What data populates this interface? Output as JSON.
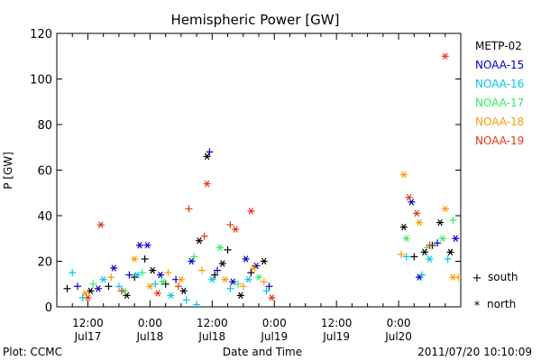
{
  "chart_data": {
    "type": "scatter",
    "title": "Hemispheric Power [GW]",
    "xlabel": "Date and Time",
    "ylabel": "P [GW]",
    "ylim": [
      0,
      120
    ],
    "yticks": [
      0,
      20,
      40,
      60,
      80,
      100,
      120
    ],
    "xlim": [
      "2011-07-17 06:00",
      "2011-07-20 12:00"
    ],
    "xticks": [
      {
        "value": "2011-07-17 12:00",
        "time": "12:00",
        "date": "Jul17"
      },
      {
        "value": "2011-07-18 00:00",
        "time": "0:00",
        "date": "Jul18"
      },
      {
        "value": "2011-07-18 12:00",
        "time": "12:00",
        "date": "Jul18"
      },
      {
        "value": "2011-07-19 00:00",
        "time": "0:00",
        "date": "Jul19"
      },
      {
        "value": "2011-07-19 12:00",
        "time": "12:00",
        "date": "Jul19"
      },
      {
        "value": "2011-07-20 00:00",
        "time": "0:00",
        "date": "Jul20"
      }
    ],
    "markers": {
      "south_symbol": "+",
      "south_label": "south",
      "north_symbol": "*",
      "north_label": "north"
    },
    "series": [
      {
        "name": "METP-02",
        "color": "#000000",
        "points": [
          {
            "x": "2011-07-17 08:00",
            "y": 8,
            "m": "+"
          },
          {
            "x": "2011-07-17 12:30",
            "y": 7,
            "m": "*"
          },
          {
            "x": "2011-07-17 16:00",
            "y": 9,
            "m": "+"
          },
          {
            "x": "2011-07-17 19:30",
            "y": 5,
            "m": "*"
          },
          {
            "x": "2011-07-17 21:00",
            "y": 13,
            "m": "+"
          },
          {
            "x": "2011-07-17 23:00",
            "y": 21,
            "m": "+"
          },
          {
            "x": "2011-07-18 00:30",
            "y": 16,
            "m": "*"
          },
          {
            "x": "2011-07-18 03:00",
            "y": 10,
            "m": "+"
          },
          {
            "x": "2011-07-18 06:30",
            "y": 7,
            "m": "*"
          },
          {
            "x": "2011-07-18 09:30",
            "y": 29,
            "m": "*"
          },
          {
            "x": "2011-07-18 11:00",
            "y": 66,
            "m": "*"
          },
          {
            "x": "2011-07-18 12:30",
            "y": 14,
            "m": "+"
          },
          {
            "x": "2011-07-18 14:00",
            "y": 19,
            "m": "*"
          },
          {
            "x": "2011-07-18 15:00",
            "y": 25,
            "m": "+"
          },
          {
            "x": "2011-07-18 17:30",
            "y": 5,
            "m": "*"
          },
          {
            "x": "2011-07-18 19:30",
            "y": 15,
            "m": "+"
          },
          {
            "x": "2011-07-18 22:00",
            "y": 20,
            "m": "*"
          },
          {
            "x": "2011-07-20 01:00",
            "y": 35,
            "m": "*"
          },
          {
            "x": "2011-07-20 03:00",
            "y": 22,
            "m": "+"
          },
          {
            "x": "2011-07-20 05:00",
            "y": 24,
            "m": "*"
          },
          {
            "x": "2011-07-20 06:30",
            "y": 27,
            "m": "+"
          },
          {
            "x": "2011-07-20 08:00",
            "y": 37,
            "m": "*"
          },
          {
            "x": "2011-07-20 10:00",
            "y": 24,
            "m": "*"
          }
        ]
      },
      {
        "name": "NOAA-15",
        "color": "#0000cc",
        "points": [
          {
            "x": "2011-07-17 10:00",
            "y": 9,
            "m": "+"
          },
          {
            "x": "2011-07-17 14:00",
            "y": 8,
            "m": "*"
          },
          {
            "x": "2011-07-17 17:00",
            "y": 17,
            "m": "*"
          },
          {
            "x": "2011-07-17 20:00",
            "y": 14,
            "m": "+"
          },
          {
            "x": "2011-07-17 22:00",
            "y": 27,
            "m": "*"
          },
          {
            "x": "2011-07-17 23:30",
            "y": 27,
            "m": "*"
          },
          {
            "x": "2011-07-18 02:00",
            "y": 14,
            "m": "*"
          },
          {
            "x": "2011-07-18 05:00",
            "y": 12,
            "m": "+"
          },
          {
            "x": "2011-07-18 08:00",
            "y": 20,
            "m": "*"
          },
          {
            "x": "2011-07-18 11:30",
            "y": 68,
            "m": "+"
          },
          {
            "x": "2011-07-18 13:00",
            "y": 16,
            "m": "+"
          },
          {
            "x": "2011-07-18 16:00",
            "y": 11,
            "m": "*"
          },
          {
            "x": "2011-07-18 18:30",
            "y": 21,
            "m": "*"
          },
          {
            "x": "2011-07-18 20:30",
            "y": 18,
            "m": "*"
          },
          {
            "x": "2011-07-18 23:00",
            "y": 9,
            "m": "+"
          },
          {
            "x": "2011-07-20 02:30",
            "y": 46,
            "m": "*"
          },
          {
            "x": "2011-07-20 04:00",
            "y": 13,
            "m": "*"
          },
          {
            "x": "2011-07-20 07:30",
            "y": 28,
            "m": "+"
          },
          {
            "x": "2011-07-20 11:00",
            "y": 30,
            "m": "*"
          }
        ]
      },
      {
        "name": "NOAA-16",
        "color": "#00c8e6",
        "points": [
          {
            "x": "2011-07-17 09:00",
            "y": 15,
            "m": "+"
          },
          {
            "x": "2011-07-17 11:00",
            "y": 4,
            "m": "+"
          },
          {
            "x": "2011-07-17 15:00",
            "y": 12,
            "m": "*"
          },
          {
            "x": "2011-07-17 18:00",
            "y": 9,
            "m": "+"
          },
          {
            "x": "2011-07-17 21:30",
            "y": 14,
            "m": "*"
          },
          {
            "x": "2011-07-18 01:00",
            "y": 10,
            "m": "+"
          },
          {
            "x": "2011-07-18 04:00",
            "y": 5,
            "m": "*"
          },
          {
            "x": "2011-07-18 07:00",
            "y": 3,
            "m": "+"
          },
          {
            "x": "2011-07-18 09:00",
            "y": 1,
            "m": "+"
          },
          {
            "x": "2011-07-18 12:00",
            "y": 12,
            "m": "*"
          },
          {
            "x": "2011-07-18 15:30",
            "y": 8,
            "m": "+"
          },
          {
            "x": "2011-07-18 19:00",
            "y": 12,
            "m": "*"
          },
          {
            "x": "2011-07-18 22:30",
            "y": 7,
            "m": "+"
          },
          {
            "x": "2011-07-20 01:30",
            "y": 22,
            "m": "+"
          },
          {
            "x": "2011-07-20 04:30",
            "y": 14,
            "m": "+"
          },
          {
            "x": "2011-07-20 06:00",
            "y": 21,
            "m": "*"
          },
          {
            "x": "2011-07-20 09:30",
            "y": 21,
            "m": "+"
          }
        ]
      },
      {
        "name": "NOAA-17",
        "color": "#33ee66",
        "points": [
          {
            "x": "2011-07-17 13:00",
            "y": 10,
            "m": "+"
          },
          {
            "x": "2011-07-17 19:00",
            "y": 7,
            "m": "*"
          },
          {
            "x": "2011-07-17 22:30",
            "y": 15,
            "m": "+"
          },
          {
            "x": "2011-07-18 02:30",
            "y": 11,
            "m": "*"
          },
          {
            "x": "2011-07-18 08:30",
            "y": 22,
            "m": "+"
          },
          {
            "x": "2011-07-18 13:30",
            "y": 26,
            "m": "*"
          },
          {
            "x": "2011-07-18 17:00",
            "y": 10,
            "m": "+"
          },
          {
            "x": "2011-07-18 21:00",
            "y": 13,
            "m": "*"
          },
          {
            "x": "2011-07-20 01:30",
            "y": 30,
            "m": "*"
          },
          {
            "x": "2011-07-20 05:30",
            "y": 26,
            "m": "+"
          },
          {
            "x": "2011-07-20 08:30",
            "y": 30,
            "m": "*"
          },
          {
            "x": "2011-07-20 10:30",
            "y": 38,
            "m": "+"
          }
        ]
      },
      {
        "name": "NOAA-18",
        "color": "#ff9900",
        "points": [
          {
            "x": "2011-07-17 11:30",
            "y": 6,
            "m": "*"
          },
          {
            "x": "2011-07-17 16:30",
            "y": 13,
            "m": "+"
          },
          {
            "x": "2011-07-17 21:00",
            "y": 21,
            "m": "*"
          },
          {
            "x": "2011-07-18 00:00",
            "y": 9,
            "m": "*"
          },
          {
            "x": "2011-07-18 03:30",
            "y": 15,
            "m": "+"
          },
          {
            "x": "2011-07-18 06:00",
            "y": 12,
            "m": "*"
          },
          {
            "x": "2011-07-18 10:00",
            "y": 16,
            "m": "+"
          },
          {
            "x": "2011-07-18 14:30",
            "y": 12,
            "m": "*"
          },
          {
            "x": "2011-07-18 18:00",
            "y": 9,
            "m": "+"
          },
          {
            "x": "2011-07-18 20:00",
            "y": 17,
            "m": "*"
          },
          {
            "x": "2011-07-18 22:00",
            "y": 11,
            "m": "+"
          },
          {
            "x": "2011-07-20 00:30",
            "y": 23,
            "m": "+"
          },
          {
            "x": "2011-07-20 01:00",
            "y": 58,
            "m": "*"
          },
          {
            "x": "2011-07-20 04:00",
            "y": 37,
            "m": "*"
          },
          {
            "x": "2011-07-20 09:00",
            "y": 43,
            "m": "*"
          },
          {
            "x": "2011-07-20 10:30",
            "y": 13,
            "m": "*"
          },
          {
            "x": "2011-07-20 11:30",
            "y": 13,
            "m": "+"
          }
        ]
      },
      {
        "name": "NOAA-19",
        "color": "#e03818",
        "points": [
          {
            "x": "2011-07-17 12:00",
            "y": 4,
            "m": "*"
          },
          {
            "x": "2011-07-17 14:30",
            "y": 36,
            "m": "*"
          },
          {
            "x": "2011-07-17 18:30",
            "y": 7,
            "m": "+"
          },
          {
            "x": "2011-07-18 01:30",
            "y": 6,
            "m": "*"
          },
          {
            "x": "2011-07-18 05:30",
            "y": 9,
            "m": "+"
          },
          {
            "x": "2011-07-18 07:30",
            "y": 43,
            "m": "+"
          },
          {
            "x": "2011-07-18 10:30",
            "y": 31,
            "m": "+"
          },
          {
            "x": "2011-07-18 11:00",
            "y": 54,
            "m": "*"
          },
          {
            "x": "2011-07-18 15:30",
            "y": 36,
            "m": "+"
          },
          {
            "x": "2011-07-18 16:30",
            "y": 34,
            "m": "*"
          },
          {
            "x": "2011-07-18 19:30",
            "y": 42,
            "m": "*"
          },
          {
            "x": "2011-07-18 23:30",
            "y": 4,
            "m": "*"
          },
          {
            "x": "2011-07-20 02:00",
            "y": 48,
            "m": "*"
          },
          {
            "x": "2011-07-20 03:30",
            "y": 41,
            "m": "*"
          },
          {
            "x": "2011-07-20 06:00",
            "y": 27,
            "m": "+"
          },
          {
            "x": "2011-07-20 09:00",
            "y": 110,
            "m": "*"
          }
        ]
      }
    ]
  },
  "footer": {
    "left": "Plot: CCMC",
    "center": "Date and Time",
    "right": "2011/07/20 10:10:09"
  }
}
